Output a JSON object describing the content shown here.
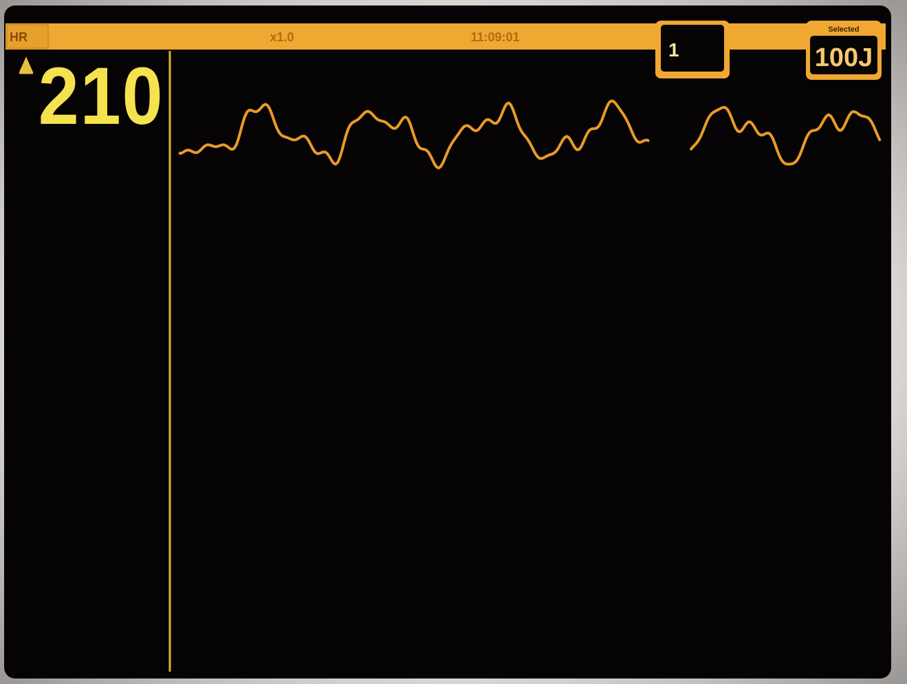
{
  "header": {
    "parameter": "HR",
    "gain": "x1.0",
    "time": "11:09:01",
    "lead": "1",
    "energy_caption": "Selected",
    "energy": "100J"
  },
  "heart_rate": "210"
}
